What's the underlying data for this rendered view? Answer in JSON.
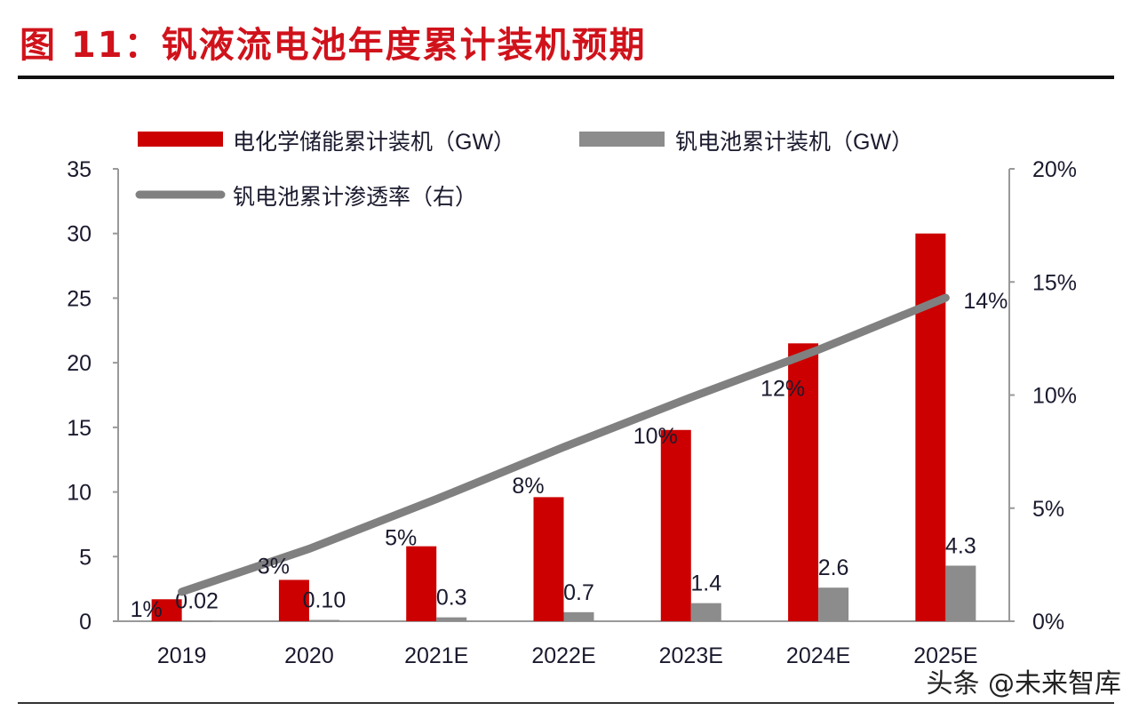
{
  "title": "图 11：钒液流电池年度累计装机预期",
  "watermark": "头条 @未来智库",
  "chart_data": {
    "type": "bar",
    "categories": [
      "2019",
      "2020",
      "2021E",
      "2022E",
      "2023E",
      "2024E",
      "2025E"
    ],
    "series": [
      {
        "name": "电化学储能累计装机（GW）",
        "type": "bar",
        "axis": "left",
        "color": "#cc0000",
        "values": [
          1.7,
          3.2,
          5.8,
          9.6,
          14.8,
          21.5,
          30.0
        ]
      },
      {
        "name": "钒电池累计装机（GW）",
        "type": "bar",
        "axis": "left",
        "color": "#8c8c8c",
        "values": [
          0.02,
          0.1,
          0.3,
          0.7,
          1.4,
          2.6,
          4.3
        ],
        "labels": [
          "0.02",
          "0.10",
          "0.3",
          "0.7",
          "1.4",
          "2.6",
          "4.3"
        ]
      },
      {
        "name": "钒电池累计渗透率（右）",
        "type": "line",
        "axis": "right",
        "color": "#808080",
        "values": [
          1.3,
          3.2,
          5.4,
          7.7,
          9.9,
          12.0,
          14.3
        ],
        "labels": [
          "1%",
          "3%",
          "5%",
          "8%",
          "10%",
          "12%",
          "14%"
        ]
      }
    ],
    "yleft": {
      "lim": [
        0,
        35
      ],
      "ticks": [
        "0",
        "5",
        "10",
        "15",
        "20",
        "25",
        "30",
        "35"
      ]
    },
    "yright": {
      "lim": [
        0,
        20
      ],
      "ticks": [
        "0%",
        "5%",
        "10%",
        "15%",
        "20%"
      ]
    },
    "legend": "top-left",
    "grid": false
  }
}
